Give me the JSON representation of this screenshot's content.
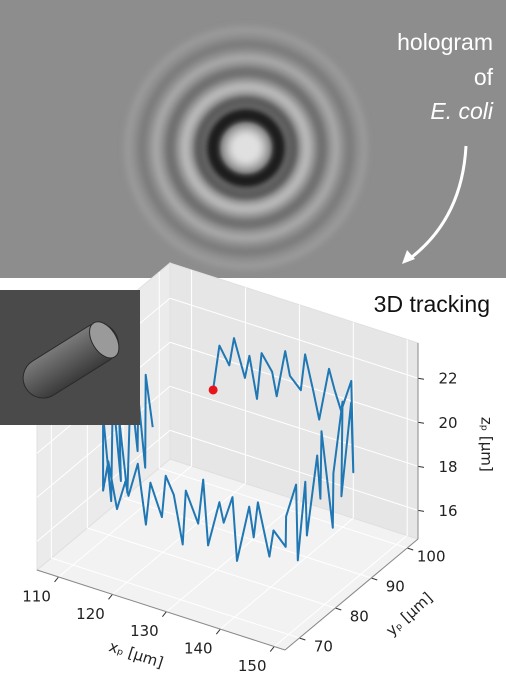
{
  "image": {
    "caption": [
      "hologram",
      "of",
      "E. coli"
    ]
  },
  "chart_data": {
    "type": "line3d",
    "title": "3D tracking",
    "xlabel": "xₚ [μm]",
    "ylabel": "yₚ [μm]",
    "zlabel": "zₚ [μm]",
    "color": "#1f77b4",
    "start_marker_color": "#e8141c",
    "grid": true,
    "xlim": [
      106,
      152
    ],
    "ylim": [
      66,
      103
    ],
    "zlim": [
      14.7,
      23.6
    ],
    "xticks": [
      110,
      120,
      130,
      140,
      150
    ],
    "yticks": [
      70,
      80,
      90,
      100
    ],
    "zticks": [
      16,
      18,
      20,
      22
    ],
    "x": [
      118,
      119.5,
      120.8,
      122,
      123.5,
      124.8,
      126,
      127.4,
      128.6,
      130,
      131.3,
      132.7,
      134,
      135.2,
      136.6,
      138,
      139.3,
      140.6,
      142,
      143.5,
      145,
      145.6,
      144.8,
      146,
      145.3,
      146.2,
      145.1,
      145.9,
      146.3,
      145.4,
      146.1,
      145.7,
      146.4,
      145.2,
      145.8,
      144,
      142.7,
      141.3,
      140,
      138.7,
      137.3,
      136,
      134.7,
      133.3,
      132,
      130.7,
      129.3,
      128,
      126.7,
      125.3,
      124,
      122.7,
      121.3,
      120,
      118.7,
      117.3,
      116,
      114.7,
      113.3,
      112,
      111.6,
      112.3,
      111.8,
      112.5,
      111.4,
      112.1,
      111.9,
      112.4,
      111.7,
      112.2,
      111.5,
      112
    ],
    "y": [
      97,
      96.5,
      97.3,
      96.8,
      97.6,
      96.9,
      97.2,
      96.4,
      97.5,
      96.7,
      97.1,
      96.3,
      97.4,
      96.8,
      97,
      96.5,
      97.3,
      96.9,
      96.6,
      97.2,
      95.5,
      94,
      92.5,
      91,
      89.5,
      88,
      86.5,
      85,
      83.5,
      82,
      80.5,
      79,
      77.5,
      76.5,
      75.5,
      74.8,
      75.6,
      74.5,
      75.3,
      76,
      74.7,
      75.4,
      74.9,
      75.8,
      74.6,
      75.2,
      75.9,
      74.4,
      75.5,
      75.1,
      74.8,
      75.7,
      74.6,
      75.3,
      75,
      74.5,
      75.6,
      75.2,
      74.9,
      75.4,
      76,
      77.2,
      78.4,
      79.6,
      80.8,
      82,
      83.2,
      84.4,
      85.6,
      86.8,
      88,
      89.2
    ],
    "z": [
      19.6,
      21.8,
      20.9,
      22.3,
      20.5,
      21.7,
      19.8,
      22.1,
      21.2,
      20.3,
      22.4,
      21.5,
      20.8,
      22.6,
      21,
      19.9,
      22.2,
      21.4,
      20.6,
      22,
      18.2,
      21.6,
      17.5,
      22.1,
      19,
      16.8,
      21.3,
      18.5,
      20.7,
      17.2,
      19.9,
      16.5,
      20.2,
      18.8,
      17.6,
      18.3,
      16.9,
      19.4,
      17.6,
      18.8,
      16.4,
      19.1,
      17.9,
      18.6,
      16.7,
      19.5,
      17.3,
      18.9,
      16.2,
      18.4,
      19.2,
      17.1,
      18.7,
      16.6,
      19.3,
      17.8,
      18.2,
      16.9,
      19,
      17.5,
      20.8,
      16.8,
      21.5,
      17.4,
      19.9,
      16.5,
      21.2,
      18.1,
      20.4,
      17,
      21,
      18.5
    ]
  }
}
